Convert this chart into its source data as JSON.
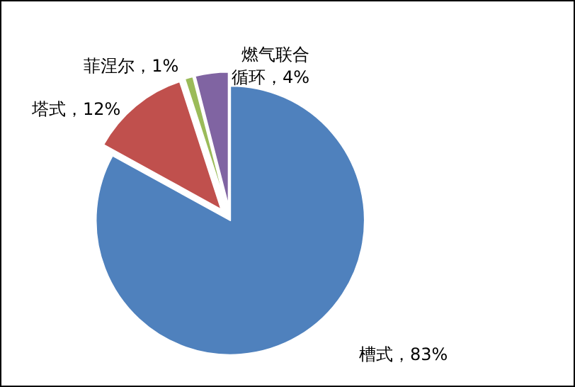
{
  "chart_data": {
    "type": "pie",
    "categories": [
      "槽式",
      "塔式",
      "菲涅尔",
      "燃气联合循环"
    ],
    "values": [
      83,
      12,
      1,
      4
    ],
    "value_labels": [
      "83%",
      "12%",
      "1%",
      "4%"
    ],
    "colors": [
      "#4f81bd",
      "#c0504d",
      "#9bbb59",
      "#8064a2"
    ]
  }
}
